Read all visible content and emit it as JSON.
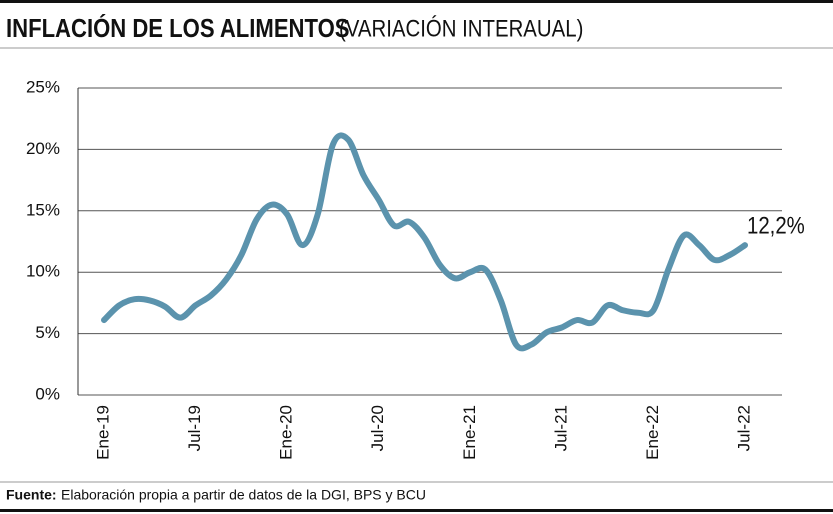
{
  "chart_data": {
    "type": "line",
    "title": "INFLACIÓN DE LOS ALIMENTOS",
    "subtitle": "(VARIACIÓN INTERAUAL)",
    "source": {
      "label": "Fuente:",
      "text": "Elaboración propia a partir de datos de la DGI, BPS y BCU"
    },
    "categories": [
      "Ene-19",
      null,
      null,
      null,
      null,
      null,
      "Jul-19",
      null,
      null,
      null,
      null,
      null,
      "Ene-20",
      null,
      null,
      null,
      null,
      null,
      "Jul-20",
      null,
      null,
      null,
      null,
      null,
      "Ene-21",
      null,
      null,
      null,
      null,
      null,
      "Jul-21",
      null,
      null,
      null,
      null,
      null,
      "Ene-22",
      null,
      null,
      null,
      null,
      null,
      "Jul-22"
    ],
    "values": [
      6.1,
      7.3,
      7.8,
      7.7,
      7.2,
      6.3,
      7.3,
      8.1,
      9.4,
      11.4,
      14.3,
      15.5,
      14.7,
      12.2,
      14.7,
      20.4,
      20.8,
      17.9,
      15.9,
      13.8,
      14.1,
      12.8,
      10.6,
      9.5,
      10.0,
      10.2,
      7.7,
      4.1,
      4.1,
      5.1,
      5.5,
      6.1,
      5.9,
      7.3,
      6.9,
      6.7,
      6.9,
      10.3,
      13.0,
      12.2,
      11.0,
      11.4,
      12.2
    ],
    "value_labels": [
      null,
      null,
      null,
      null,
      null,
      null,
      null,
      null,
      null,
      null,
      null,
      null,
      null,
      null,
      null,
      null,
      null,
      null,
      null,
      null,
      null,
      null,
      null,
      null,
      null,
      null,
      null,
      null,
      null,
      null,
      null,
      null,
      null,
      null,
      null,
      null,
      null,
      null,
      null,
      null,
      null,
      null,
      "12,2%"
    ],
    "color": "#5b93ad",
    "ylim": [
      0,
      25
    ],
    "yticks": [
      {
        "value": 0,
        "label": "0%"
      },
      {
        "value": 5,
        "label": "5%"
      },
      {
        "value": 10,
        "label": "10%"
      },
      {
        "value": 15,
        "label": "15%"
      },
      {
        "value": 20,
        "label": "20%"
      },
      {
        "value": 25,
        "label": "25%"
      }
    ],
    "grid": true
  }
}
